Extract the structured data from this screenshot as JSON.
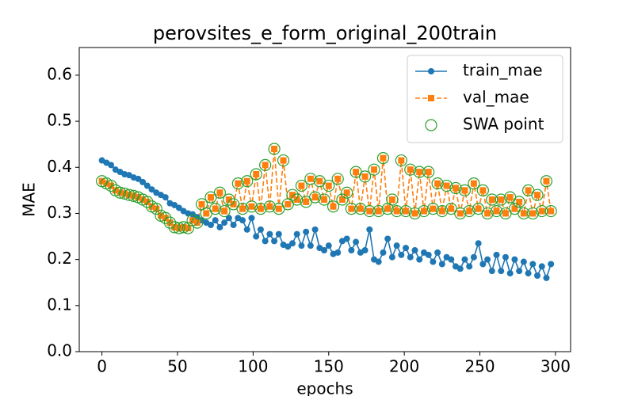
{
  "chart_data": {
    "type": "line",
    "title": "perovsites_e_form_original_200train",
    "xlabel": "epochs",
    "ylabel": "MAE",
    "x": [
      0,
      3,
      6,
      9,
      12,
      15,
      18,
      21,
      24,
      27,
      30,
      33,
      36,
      39,
      42,
      45,
      48,
      51,
      54,
      57,
      60,
      63,
      66,
      69,
      72,
      75,
      78,
      81,
      84,
      87,
      90,
      93,
      96,
      99,
      102,
      105,
      108,
      111,
      114,
      117,
      120,
      123,
      126,
      129,
      132,
      135,
      138,
      141,
      144,
      147,
      150,
      153,
      156,
      159,
      162,
      165,
      168,
      171,
      174,
      177,
      180,
      183,
      186,
      189,
      192,
      195,
      198,
      201,
      204,
      207,
      210,
      213,
      216,
      219,
      222,
      225,
      228,
      231,
      234,
      237,
      240,
      243,
      246,
      249,
      252,
      255,
      258,
      261,
      264,
      267,
      270,
      273,
      276,
      279,
      282,
      285,
      288,
      291,
      294,
      297
    ],
    "series": [
      {
        "name": "train_mae",
        "color": "#1f77b4",
        "marker": "circle",
        "linestyle": "solid",
        "values": [
          0.415,
          0.41,
          0.405,
          0.395,
          0.39,
          0.385,
          0.383,
          0.378,
          0.375,
          0.368,
          0.36,
          0.352,
          0.345,
          0.34,
          0.335,
          0.322,
          0.318,
          0.312,
          0.305,
          0.3,
          0.298,
          0.292,
          0.285,
          0.28,
          0.275,
          0.285,
          0.27,
          0.28,
          0.29,
          0.275,
          0.29,
          0.285,
          0.265,
          0.29,
          0.25,
          0.265,
          0.24,
          0.255,
          0.24,
          0.255,
          0.232,
          0.228,
          0.235,
          0.255,
          0.23,
          0.26,
          0.23,
          0.265,
          0.225,
          0.22,
          0.23,
          0.212,
          0.215,
          0.24,
          0.245,
          0.22,
          0.238,
          0.215,
          0.22,
          0.265,
          0.2,
          0.195,
          0.215,
          0.245,
          0.205,
          0.23,
          0.21,
          0.225,
          0.205,
          0.22,
          0.2,
          0.215,
          0.21,
          0.195,
          0.215,
          0.19,
          0.205,
          0.2,
          0.185,
          0.18,
          0.2,
          0.185,
          0.205,
          0.235,
          0.19,
          0.2,
          0.175,
          0.21,
          0.175,
          0.205,
          0.17,
          0.2,
          0.175,
          0.195,
          0.17,
          0.19,
          0.165,
          0.185,
          0.16,
          0.19
        ]
      },
      {
        "name": "val_mae",
        "color": "#ff7f0e",
        "marker": "square",
        "linestyle": "dashed",
        "values": [
          0.37,
          0.365,
          0.36,
          0.35,
          0.345,
          0.343,
          0.34,
          0.338,
          0.335,
          0.33,
          0.325,
          0.315,
          0.31,
          0.295,
          0.29,
          0.28,
          0.27,
          0.268,
          0.27,
          0.268,
          0.285,
          0.28,
          0.32,
          0.3,
          0.335,
          0.31,
          0.345,
          0.305,
          0.33,
          0.32,
          0.365,
          0.31,
          0.37,
          0.315,
          0.385,
          0.31,
          0.405,
          0.315,
          0.44,
          0.31,
          0.415,
          0.32,
          0.34,
          0.33,
          0.36,
          0.325,
          0.375,
          0.335,
          0.37,
          0.33,
          0.36,
          0.315,
          0.375,
          0.33,
          0.345,
          0.31,
          0.39,
          0.31,
          0.38,
          0.305,
          0.395,
          0.305,
          0.42,
          0.31,
          0.33,
          0.305,
          0.415,
          0.305,
          0.395,
          0.3,
          0.39,
          0.305,
          0.39,
          0.31,
          0.365,
          0.305,
          0.36,
          0.31,
          0.355,
          0.3,
          0.35,
          0.305,
          0.365,
          0.31,
          0.35,
          0.3,
          0.33,
          0.305,
          0.33,
          0.3,
          0.335,
          0.31,
          0.325,
          0.3,
          0.35,
          0.3,
          0.34,
          0.305,
          0.37,
          0.305
        ]
      },
      {
        "name": "SWA point",
        "color": "#2ca02c",
        "marker": "open-circle",
        "linestyle": "none",
        "values": [
          0.37,
          0.365,
          0.36,
          0.35,
          0.345,
          0.343,
          0.34,
          0.338,
          0.335,
          0.33,
          0.325,
          0.315,
          0.31,
          0.295,
          0.29,
          0.28,
          0.27,
          0.268,
          0.27,
          0.268,
          0.285,
          0.28,
          0.32,
          0.3,
          0.335,
          0.31,
          0.345,
          0.305,
          0.33,
          0.32,
          0.365,
          0.31,
          0.37,
          0.315,
          0.385,
          0.31,
          0.405,
          0.315,
          0.44,
          0.31,
          0.415,
          0.32,
          0.34,
          0.33,
          0.36,
          0.325,
          0.375,
          0.335,
          0.37,
          0.33,
          0.36,
          0.315,
          0.375,
          0.33,
          0.345,
          0.31,
          0.39,
          0.31,
          0.38,
          0.305,
          0.395,
          0.305,
          0.42,
          0.31,
          0.33,
          0.305,
          0.415,
          0.305,
          0.395,
          0.3,
          0.39,
          0.305,
          0.39,
          0.31,
          0.365,
          0.305,
          0.36,
          0.31,
          0.355,
          0.3,
          0.35,
          0.305,
          0.365,
          0.31,
          0.35,
          0.3,
          0.33,
          0.305,
          0.33,
          0.3,
          0.335,
          0.31,
          0.325,
          0.3,
          0.35,
          0.3,
          0.34,
          0.305,
          0.37,
          0.305
        ]
      }
    ],
    "xlim": [
      -15,
      310
    ],
    "ylim": [
      0,
      0.66
    ],
    "xticks": [
      0,
      50,
      100,
      150,
      200,
      250,
      300
    ],
    "yticks": [
      {
        "value": 0,
        "label": "0.0"
      },
      0.1,
      0.2,
      0.3,
      0.4,
      0.5,
      0.6
    ],
    "legend": "upper right"
  }
}
